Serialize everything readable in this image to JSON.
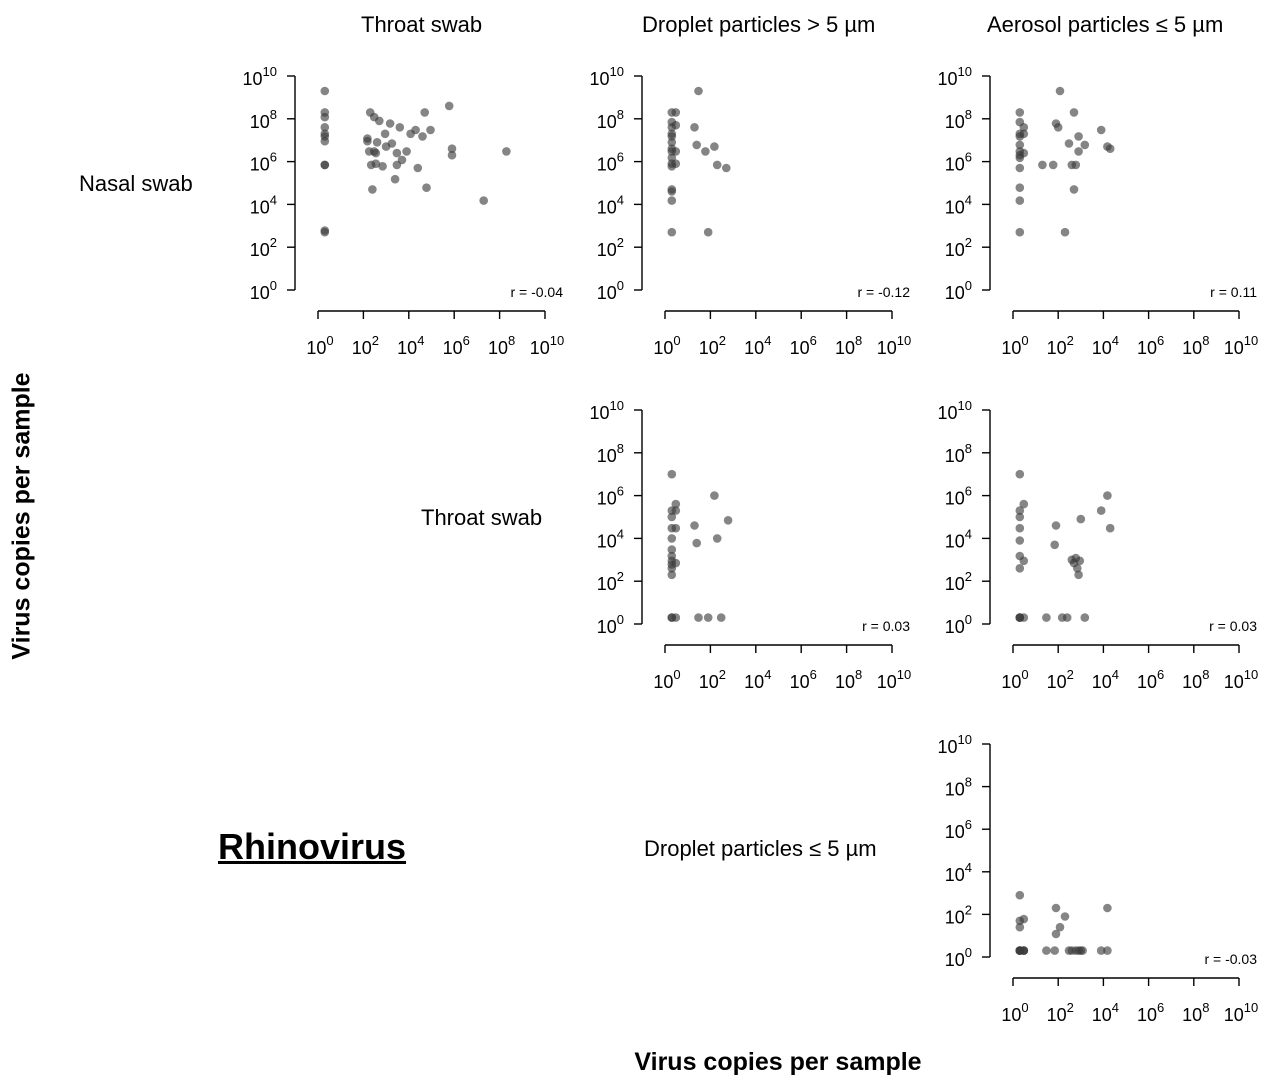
{
  "figure": {
    "virus_name": "Rhinovirus",
    "y_axis_title": "Virus copies per sample",
    "x_axis_title": "Virus copies per sample",
    "column_titles": [
      "Throat swab",
      "Droplet particles > 5 µm",
      "Aerosol particles ≤ 5 µm"
    ],
    "row_titles": [
      "Nasal swab",
      "Throat swab",
      "Droplet particles ≤ 5 µm"
    ]
  },
  "chart_data": [
    {
      "type": "scatter",
      "panel": "Nasal swab vs Throat swab",
      "x_axis": "Throat swab",
      "y_axis": "Nasal swab",
      "scale": "log10",
      "xlim": [
        1,
        10000000000
      ],
      "ylim": [
        1,
        10000000000
      ],
      "x_tick_exponents": [
        0,
        2,
        4,
        6,
        8,
        10
      ],
      "y_tick_exponents": [
        0,
        2,
        4,
        6,
        8,
        10
      ],
      "annotation": "r = -0.04",
      "point_color": "#3a3a3a",
      "points": [
        [
          2,
          2000000000.0
        ],
        [
          2,
          200000000.0
        ],
        [
          2,
          120000000.0
        ],
        [
          2,
          40000000.0
        ],
        [
          2,
          20000000.0
        ],
        [
          2,
          15000000.0
        ],
        [
          2,
          9000000.0
        ],
        [
          2,
          700000.0
        ],
        [
          2,
          700000.0
        ],
        [
          2,
          500
        ],
        [
          2,
          600
        ],
        [
          150,
          12000000.0
        ],
        [
          150,
          9000000.0
        ],
        [
          180,
          3000000.0
        ],
        [
          200,
          200000000.0
        ],
        [
          220,
          700000.0
        ],
        [
          250,
          50000.0
        ],
        [
          300,
          120000000.0
        ],
        [
          300,
          3000000.0
        ],
        [
          350,
          800000.0
        ],
        [
          350,
          2500000.0
        ],
        [
          400,
          8000000.0
        ],
        [
          500,
          80000000.0
        ],
        [
          700,
          600000.0
        ],
        [
          900,
          20000000.0
        ],
        [
          1000,
          5000000.0
        ],
        [
          1500,
          60000000.0
        ],
        [
          1800,
          7000000.0
        ],
        [
          2500,
          150000.0
        ],
        [
          3000,
          700000.0
        ],
        [
          3000,
          2500000.0
        ],
        [
          4000,
          40000000.0
        ],
        [
          5000,
          1200000.0
        ],
        [
          8000,
          3000000.0
        ],
        [
          12000,
          20000000.0
        ],
        [
          20000,
          30000000.0
        ],
        [
          25000,
          500000.0
        ],
        [
          40000,
          15000000.0
        ],
        [
          50000,
          200000000.0
        ],
        [
          60000,
          60000.0
        ],
        [
          90000,
          30000000.0
        ],
        [
          600000,
          400000000.0
        ],
        [
          800000,
          4000000.0
        ],
        [
          800000,
          2000000.0
        ],
        [
          20000000,
          15000.0
        ],
        [
          200000000,
          3000000.0
        ]
      ]
    },
    {
      "type": "scatter",
      "panel": "Nasal swab vs Droplet particles > 5 µm",
      "x_axis": "Droplet particles > 5 µm",
      "y_axis": "Nasal swab",
      "scale": "log10",
      "xlim": [
        1,
        10000000000
      ],
      "ylim": [
        1,
        10000000000
      ],
      "x_tick_exponents": [
        0,
        2,
        4,
        6,
        8,
        10
      ],
      "y_tick_exponents": [
        0,
        2,
        4,
        6,
        8,
        10
      ],
      "annotation": "r = -0.12",
      "point_color": "#3a3a3a",
      "points": [
        [
          2,
          200000000.0
        ],
        [
          2,
          70000000.0
        ],
        [
          2,
          40000000.0
        ],
        [
          2,
          20000000.0
        ],
        [
          2,
          15000000.0
        ],
        [
          2,
          8000000.0
        ],
        [
          2,
          4000000.0
        ],
        [
          2,
          3000000.0
        ],
        [
          2,
          1500000.0
        ],
        [
          2,
          800000.0
        ],
        [
          2,
          600000.0
        ],
        [
          2,
          40000.0
        ],
        [
          2,
          50000.0
        ],
        [
          2,
          15000.0
        ],
        [
          2,
          500
        ],
        [
          3,
          200000000.0
        ],
        [
          3,
          50000000.0
        ],
        [
          3,
          3000000.0
        ],
        [
          3,
          800000.0
        ],
        [
          20,
          40000000.0
        ],
        [
          25,
          6000000.0
        ],
        [
          30,
          2000000000.0
        ],
        [
          60,
          3000000.0
        ],
        [
          80,
          500
        ],
        [
          150,
          5000000.0
        ],
        [
          200,
          700000.0
        ],
        [
          500,
          500000.0
        ]
      ]
    },
    {
      "type": "scatter",
      "panel": "Nasal swab vs Aerosol particles ≤ 5 µm",
      "x_axis": "Aerosol particles ≤ 5 µm",
      "y_axis": "Nasal swab",
      "scale": "log10",
      "xlim": [
        1,
        10000000000
      ],
      "ylim": [
        1,
        10000000000
      ],
      "x_tick_exponents": [
        0,
        2,
        4,
        6,
        8,
        10
      ],
      "y_tick_exponents": [
        0,
        2,
        4,
        6,
        8,
        10
      ],
      "annotation": "r = 0.11",
      "point_color": "#3a3a3a",
      "points": [
        [
          2,
          200000000.0
        ],
        [
          2,
          70000000.0
        ],
        [
          2,
          20000000.0
        ],
        [
          2,
          15000000.0
        ],
        [
          2,
          6000000.0
        ],
        [
          2,
          3000000.0
        ],
        [
          2,
          2000000.0
        ],
        [
          2,
          1500000.0
        ],
        [
          2,
          500000.0
        ],
        [
          2,
          60000.0
        ],
        [
          2,
          15000.0
        ],
        [
          2,
          500
        ],
        [
          3,
          40000000.0
        ],
        [
          3,
          20000000.0
        ],
        [
          3,
          2500000.0
        ],
        [
          20,
          700000.0
        ],
        [
          60,
          700000.0
        ],
        [
          80,
          60000000.0
        ],
        [
          100,
          40000000.0
        ],
        [
          120,
          2000000000.0
        ],
        [
          200,
          500
        ],
        [
          300,
          7000000.0
        ],
        [
          400,
          700000.0
        ],
        [
          500,
          200000000.0
        ],
        [
          500,
          50000.0
        ],
        [
          600,
          700000.0
        ],
        [
          800,
          15000000.0
        ],
        [
          800,
          3000000.0
        ],
        [
          1500,
          6000000.0
        ],
        [
          8000,
          30000000.0
        ],
        [
          15000,
          5000000.0
        ],
        [
          20000,
          4000000.0
        ]
      ]
    },
    {
      "type": "scatter",
      "panel": "Throat swab vs Droplet particles > 5 µm",
      "x_axis": "Droplet particles > 5 µm",
      "y_axis": "Throat swab",
      "scale": "log10",
      "xlim": [
        1,
        10000000000
      ],
      "ylim": [
        1,
        10000000000
      ],
      "x_tick_exponents": [
        0,
        2,
        4,
        6,
        8,
        10
      ],
      "y_tick_exponents": [
        0,
        2,
        4,
        6,
        8,
        10
      ],
      "annotation": "r = 0.03",
      "point_color": "#3a3a3a",
      "points": [
        [
          2,
          10000000.0
        ],
        [
          2,
          200000.0
        ],
        [
          2,
          100000.0
        ],
        [
          2,
          30000.0
        ],
        [
          2,
          10000.0
        ],
        [
          2,
          3000
        ],
        [
          2,
          1500
        ],
        [
          2,
          900
        ],
        [
          2,
          600
        ],
        [
          2,
          400
        ],
        [
          2,
          200
        ],
        [
          2,
          2
        ],
        [
          2,
          2
        ],
        [
          3,
          400000.0
        ],
        [
          3,
          200000.0
        ],
        [
          3,
          30000.0
        ],
        [
          3,
          700
        ],
        [
          3,
          2
        ],
        [
          20,
          40000.0
        ],
        [
          25,
          6000
        ],
        [
          30,
          2
        ],
        [
          80,
          2
        ],
        [
          150,
          1000000.0
        ],
        [
          200,
          10000.0
        ],
        [
          300,
          2
        ],
        [
          600,
          70000.0
        ]
      ]
    },
    {
      "type": "scatter",
      "panel": "Throat swab vs Aerosol particles ≤ 5 µm",
      "x_axis": "Aerosol particles ≤ 5 µm",
      "y_axis": "Throat swab",
      "scale": "log10",
      "xlim": [
        1,
        10000000000
      ],
      "ylim": [
        1,
        10000000000
      ],
      "x_tick_exponents": [
        0,
        2,
        4,
        6,
        8,
        10
      ],
      "y_tick_exponents": [
        0,
        2,
        4,
        6,
        8,
        10
      ],
      "annotation": "r = 0.03",
      "point_color": "#3a3a3a",
      "points": [
        [
          2,
          10000000.0
        ],
        [
          2,
          200000.0
        ],
        [
          2,
          100000.0
        ],
        [
          2,
          30000.0
        ],
        [
          2,
          8000
        ],
        [
          2,
          1500
        ],
        [
          2,
          400
        ],
        [
          2,
          2
        ],
        [
          2,
          2
        ],
        [
          2,
          2
        ],
        [
          3,
          400000.0
        ],
        [
          3,
          900
        ],
        [
          3,
          2
        ],
        [
          30,
          2
        ],
        [
          70,
          5000
        ],
        [
          80,
          40000.0
        ],
        [
          150,
          2
        ],
        [
          250,
          2
        ],
        [
          400,
          1000
        ],
        [
          500,
          700
        ],
        [
          600,
          1200
        ],
        [
          700,
          400
        ],
        [
          800,
          200
        ],
        [
          900,
          900
        ],
        [
          1000,
          80000.0
        ],
        [
          1500,
          2
        ],
        [
          8000,
          200000.0
        ],
        [
          15000,
          1000000.0
        ],
        [
          20000,
          30000.0
        ]
      ]
    },
    {
      "type": "scatter",
      "panel": "Droplet particles ≤ 5 µm vs Aerosol particles ≤ 5 µm",
      "x_axis": "Aerosol particles ≤ 5 µm",
      "y_axis": "Droplet particles ≤ 5 µm",
      "scale": "log10",
      "xlim": [
        1,
        10000000000
      ],
      "ylim": [
        1,
        10000000000
      ],
      "x_tick_exponents": [
        0,
        2,
        4,
        6,
        8,
        10
      ],
      "y_tick_exponents": [
        0,
        2,
        4,
        6,
        8,
        10
      ],
      "annotation": "r = -0.03",
      "point_color": "#3a3a3a",
      "points": [
        [
          2,
          800
        ],
        [
          2,
          50
        ],
        [
          2,
          25
        ],
        [
          2,
          2
        ],
        [
          2,
          2
        ],
        [
          2,
          2
        ],
        [
          2,
          2
        ],
        [
          3,
          60
        ],
        [
          3,
          2
        ],
        [
          3,
          2
        ],
        [
          3,
          2
        ],
        [
          30,
          2
        ],
        [
          70,
          2
        ],
        [
          80,
          200
        ],
        [
          80,
          12
        ],
        [
          120,
          25
        ],
        [
          200,
          80
        ],
        [
          300,
          2
        ],
        [
          400,
          2
        ],
        [
          600,
          2
        ],
        [
          800,
          2
        ],
        [
          1000,
          2
        ],
        [
          1200,
          2
        ],
        [
          8000,
          2
        ],
        [
          15000,
          200
        ],
        [
          15000,
          2
        ]
      ]
    }
  ]
}
